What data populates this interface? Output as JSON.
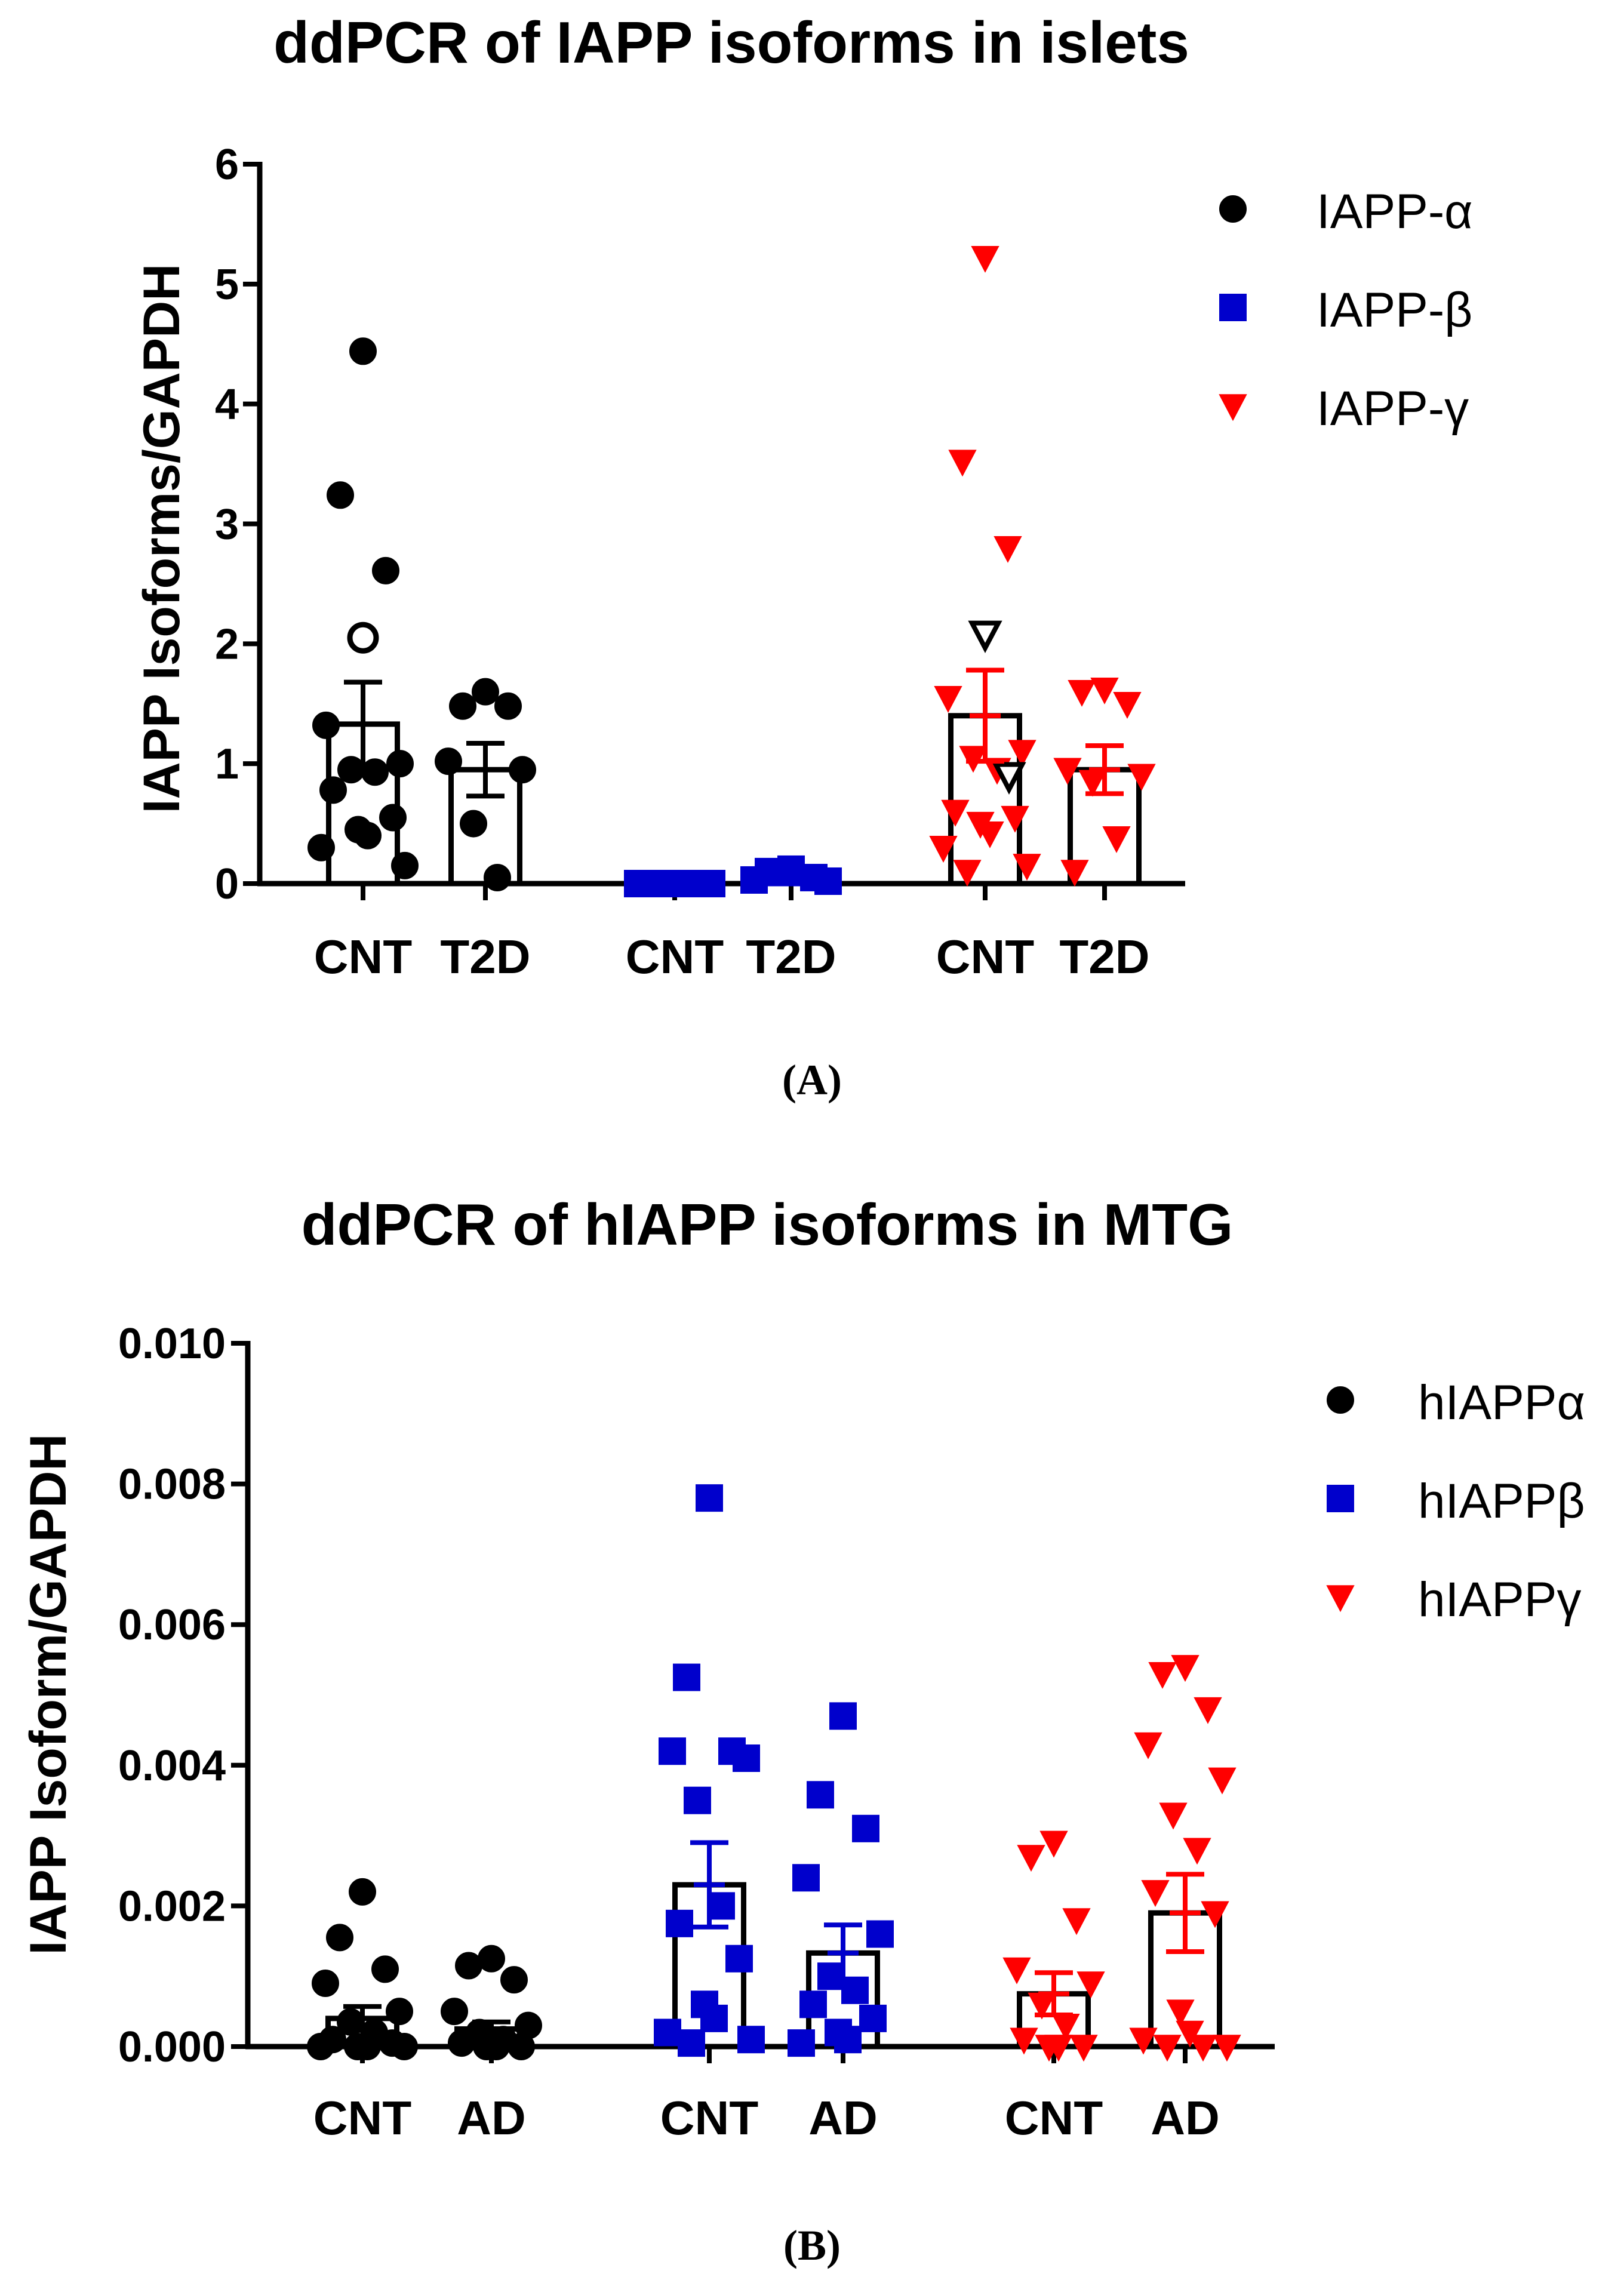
{
  "chart_data": [
    {
      "type": "bar",
      "panel_label": "(A)",
      "title": "ddPCR of IAPP isoforms in islets",
      "ylabel": "IAPP Isoforms/GAPDH",
      "xlabel": "",
      "ylim": [
        0,
        6
      ],
      "yticks": [
        "0",
        "1",
        "2",
        "3",
        "4",
        "5",
        "6"
      ],
      "legend_position": "top-right",
      "categories": [
        "CNT",
        "T2D",
        "CNT",
        "T2D",
        "CNT",
        "T2D"
      ],
      "series": [
        {
          "name": "IAPP-α",
          "color": "#000000",
          "marker": "circle",
          "groups": [
            {
              "category": "CNT",
              "mean": 1.33,
              "sem": 0.35,
              "points": [
                4.44,
                3.24,
                2.61,
                1.32,
                1.0,
                0.95,
                0.93,
                0.78,
                0.55,
                0.45,
                0.4,
                0.3,
                0.15
              ],
              "open_points": [
                2.05
              ]
            },
            {
              "category": "T2D",
              "mean": 0.95,
              "sem": 0.22,
              "points": [
                1.6,
                1.48,
                1.48,
                1.02,
                0.95,
                0.5,
                0.05
              ],
              "open_points": []
            }
          ]
        },
        {
          "name": "IAPP-β",
          "color": "#0000cc",
          "marker": "square",
          "groups": [
            {
              "category": "CNT",
              "mean": 0.0,
              "sem": 0.0,
              "points": [
                0.0,
                0.0,
                0.0,
                0.0,
                0.0,
                0.0
              ],
              "open_points": []
            },
            {
              "category": "T2D",
              "mean": 0.04,
              "sem": 0.02,
              "points": [
                0.12,
                0.1,
                0.05,
                0.03,
                0.02
              ],
              "open_points": []
            }
          ]
        },
        {
          "name": "IAPP-γ",
          "color": "#ff0000",
          "marker": "triangle-down",
          "groups": [
            {
              "category": "CNT",
              "mean": 1.4,
              "sem": 0.38,
              "points": [
                5.22,
                3.52,
                2.8,
                1.55,
                1.1,
                1.05,
                0.95,
                0.6,
                0.55,
                0.5,
                0.42,
                0.3,
                0.15,
                0.1
              ],
              "open_points": [
                2.08,
                0.9
              ]
            },
            {
              "category": "T2D",
              "mean": 0.95,
              "sem": 0.2,
              "points": [
                1.62,
                1.6,
                1.5,
                0.95,
                0.9,
                0.85,
                0.38,
                0.1
              ],
              "open_points": []
            }
          ]
        }
      ]
    },
    {
      "type": "bar",
      "panel_label": "(B)",
      "title": "ddPCR of hIAPP isoforms in MTG",
      "ylabel": "IAPP Isoform/GAPDH",
      "xlabel": "",
      "ylim": [
        0,
        0.01
      ],
      "yticks": [
        "0.000",
        "0.002",
        "0.004",
        "0.006",
        "0.008",
        "0.010"
      ],
      "legend_position": "top-right",
      "categories": [
        "CNT",
        "AD",
        "CNT",
        "AD",
        "CNT",
        "AD"
      ],
      "series": [
        {
          "name": "hIAPPα",
          "color": "#000000",
          "marker": "circle",
          "groups": [
            {
              "category": "CNT",
              "mean": 0.0004,
              "sem": 0.00017,
              "points": [
                0.0022,
                0.00155,
                0.0011,
                0.0009,
                0.0005,
                0.00035,
                0.0002,
                0.0001,
                5e-05,
                0.0,
                0.0,
                0.0,
                0.0
              ],
              "open_points": []
            },
            {
              "category": "AD",
              "mean": 0.00025,
              "sem": 0.0001,
              "points": [
                0.00125,
                0.00115,
                0.00095,
                0.0005,
                0.0003,
                0.0002,
                0.0001,
                5e-05,
                0.0,
                0.0,
                0.0
              ],
              "open_points": []
            }
          ]
        },
        {
          "name": "hIAPPβ",
          "color": "#0000cc",
          "marker": "square",
          "groups": [
            {
              "category": "CNT",
              "mean": 0.0023,
              "sem": 0.0006,
              "points": [
                0.0078,
                0.00525,
                0.0042,
                0.0042,
                0.0041,
                0.0035,
                0.002,
                0.00175,
                0.00125,
                0.0006,
                0.0004,
                0.0002,
                0.0001,
                5e-05
              ],
              "open_points": []
            },
            {
              "category": "AD",
              "mean": 0.00133,
              "sem": 0.0004,
              "points": [
                0.0047,
                0.00358,
                0.0031,
                0.0024,
                0.0016,
                0.001,
                0.0008,
                0.0006,
                0.0004,
                0.0002,
                0.0001,
                5e-05
              ],
              "open_points": []
            }
          ]
        },
        {
          "name": "hIAPPγ",
          "color": "#ff0000",
          "marker": "triangle-down",
          "groups": [
            {
              "category": "CNT",
              "mean": 0.00075,
              "sem": 0.0003,
              "points": [
                0.0029,
                0.0027,
                0.0018,
                0.0011,
                0.0009,
                0.0006,
                0.0003,
                0.0001,
                0.0,
                0.0,
                0.0
              ],
              "open_points": []
            },
            {
              "category": "AD",
              "mean": 0.0019,
              "sem": 0.00055,
              "points": [
                0.0054,
                0.0053,
                0.0048,
                0.0043,
                0.0038,
                0.0033,
                0.0028,
                0.0022,
                0.0019,
                0.0005,
                0.0002,
                0.0001,
                0.0,
                0.0,
                0.0
              ],
              "open_points": []
            }
          ]
        }
      ]
    }
  ]
}
